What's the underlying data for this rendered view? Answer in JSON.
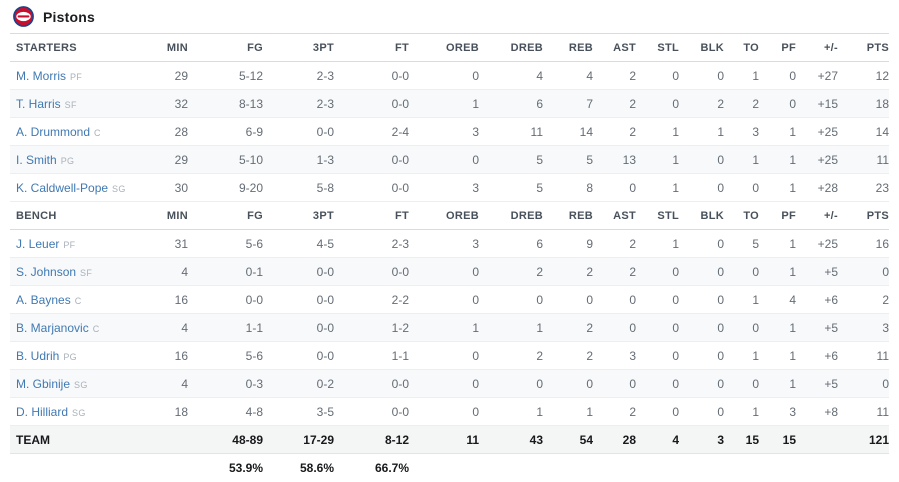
{
  "header": {
    "team_name": "Pistons"
  },
  "colors": {
    "link_blue": "#4079b2",
    "logo_blue": "#1d428a",
    "logo_red": "#c8102e"
  },
  "table": {
    "stat_columns": [
      "MIN",
      "FG",
      "3PT",
      "FT",
      "OREB",
      "DREB",
      "REB",
      "AST",
      "STL",
      "BLK",
      "TO",
      "PF",
      "+/-",
      "PTS"
    ],
    "sections": [
      {
        "label": "STARTERS",
        "players": [
          {
            "name": "M. Morris",
            "position": "PF",
            "values": [
              "29",
              "5-12",
              "2-3",
              "0-0",
              "0",
              "4",
              "4",
              "2",
              "0",
              "0",
              "1",
              "0",
              "+27",
              "12"
            ]
          },
          {
            "name": "T. Harris",
            "position": "SF",
            "values": [
              "32",
              "8-13",
              "2-3",
              "0-0",
              "1",
              "6",
              "7",
              "2",
              "0",
              "2",
              "2",
              "0",
              "+15",
              "18"
            ]
          },
          {
            "name": "A. Drummond",
            "position": "C",
            "values": [
              "28",
              "6-9",
              "0-0",
              "2-4",
              "3",
              "11",
              "14",
              "2",
              "1",
              "1",
              "3",
              "1",
              "+25",
              "14"
            ]
          },
          {
            "name": "I. Smith",
            "position": "PG",
            "values": [
              "29",
              "5-10",
              "1-3",
              "0-0",
              "0",
              "5",
              "5",
              "13",
              "1",
              "0",
              "1",
              "1",
              "+25",
              "11"
            ]
          },
          {
            "name": "K. Caldwell-Pope",
            "position": "SG",
            "values": [
              "30",
              "9-20",
              "5-8",
              "0-0",
              "3",
              "5",
              "8",
              "0",
              "1",
              "0",
              "0",
              "1",
              "+28",
              "23"
            ]
          }
        ]
      },
      {
        "label": "BENCH",
        "players": [
          {
            "name": "J. Leuer",
            "position": "PF",
            "values": [
              "31",
              "5-6",
              "4-5",
              "2-3",
              "3",
              "6",
              "9",
              "2",
              "1",
              "0",
              "5",
              "1",
              "+25",
              "16"
            ]
          },
          {
            "name": "S. Johnson",
            "position": "SF",
            "values": [
              "4",
              "0-1",
              "0-0",
              "0-0",
              "0",
              "2",
              "2",
              "2",
              "0",
              "0",
              "0",
              "1",
              "+5",
              "0"
            ]
          },
          {
            "name": "A. Baynes",
            "position": "C",
            "values": [
              "16",
              "0-0",
              "0-0",
              "2-2",
              "0",
              "0",
              "0",
              "0",
              "0",
              "0",
              "1",
              "4",
              "+6",
              "2"
            ]
          },
          {
            "name": "B. Marjanovic",
            "position": "C",
            "values": [
              "4",
              "1-1",
              "0-0",
              "1-2",
              "1",
              "1",
              "2",
              "0",
              "0",
              "0",
              "0",
              "1",
              "+5",
              "3"
            ]
          },
          {
            "name": "B. Udrih",
            "position": "PG",
            "values": [
              "16",
              "5-6",
              "0-0",
              "1-1",
              "0",
              "2",
              "2",
              "3",
              "0",
              "0",
              "1",
              "1",
              "+6",
              "11"
            ]
          },
          {
            "name": "M. Gbinije",
            "position": "SG",
            "values": [
              "4",
              "0-3",
              "0-2",
              "0-0",
              "0",
              "0",
              "0",
              "0",
              "0",
              "0",
              "0",
              "1",
              "+5",
              "0"
            ]
          },
          {
            "name": "D. Hilliard",
            "position": "SG",
            "values": [
              "18",
              "4-8",
              "3-5",
              "0-0",
              "0",
              "1",
              "1",
              "2",
              "0",
              "0",
              "1",
              "3",
              "+8",
              "11"
            ]
          }
        ]
      }
    ],
    "totals": {
      "label": "TEAM",
      "values": [
        "",
        "48-89",
        "17-29",
        "8-12",
        "11",
        "43",
        "54",
        "28",
        "4",
        "3",
        "15",
        "15",
        "",
        "121"
      ]
    },
    "shooting_pct": {
      "fg": "53.9%",
      "three_pt": "58.6%",
      "ft": "66.7%"
    }
  }
}
